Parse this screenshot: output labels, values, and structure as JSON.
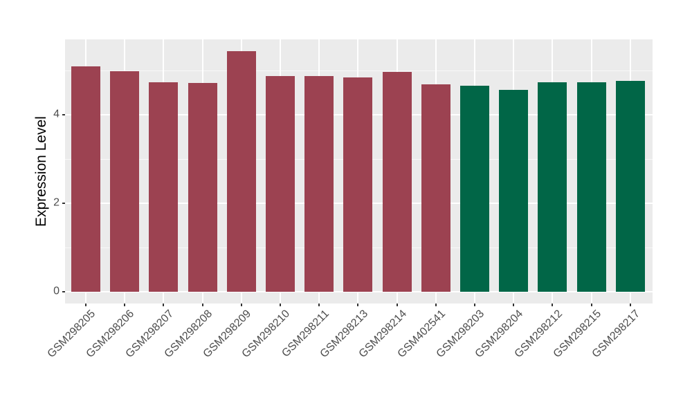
{
  "chart_data": {
    "type": "bar",
    "title": "",
    "xlabel": "",
    "ylabel": "Expression Level",
    "categories": [
      "GSM298205",
      "GSM298206",
      "GSM298207",
      "GSM298208",
      "GSM298209",
      "GSM298210",
      "GSM298211",
      "GSM298213",
      "GSM298214",
      "GSM402541",
      "GSM298203",
      "GSM298204",
      "GSM298212",
      "GSM298215",
      "GSM298217"
    ],
    "values": [
      5.1,
      4.98,
      4.74,
      4.72,
      5.44,
      4.88,
      4.88,
      4.84,
      4.97,
      4.68,
      4.66,
      4.56,
      4.73,
      4.73,
      4.77
    ],
    "groups": [
      "group1",
      "group1",
      "group1",
      "group1",
      "group1",
      "group1",
      "group1",
      "group1",
      "group1",
      "group1",
      "group2",
      "group2",
      "group2",
      "group2",
      "group2"
    ],
    "group_colors": {
      "group1": "#9C4251",
      "group2": "#016647"
    },
    "ytick_labels": [
      "0",
      "2",
      "4"
    ],
    "ytick_values": [
      0,
      2,
      4
    ],
    "minor_gridline_values": [
      1,
      3,
      5
    ],
    "ylim": [
      -0.28,
      5.72
    ],
    "grid": true,
    "legend_position": "none",
    "panel_background": "#EBEBEB",
    "gridline_color": "#FFFFFF",
    "tick_mark_color": "#333333",
    "tick_label_color": "#4D4D4D",
    "axis_title_color": "#000000",
    "figure_background": "#FFFFFF"
  }
}
